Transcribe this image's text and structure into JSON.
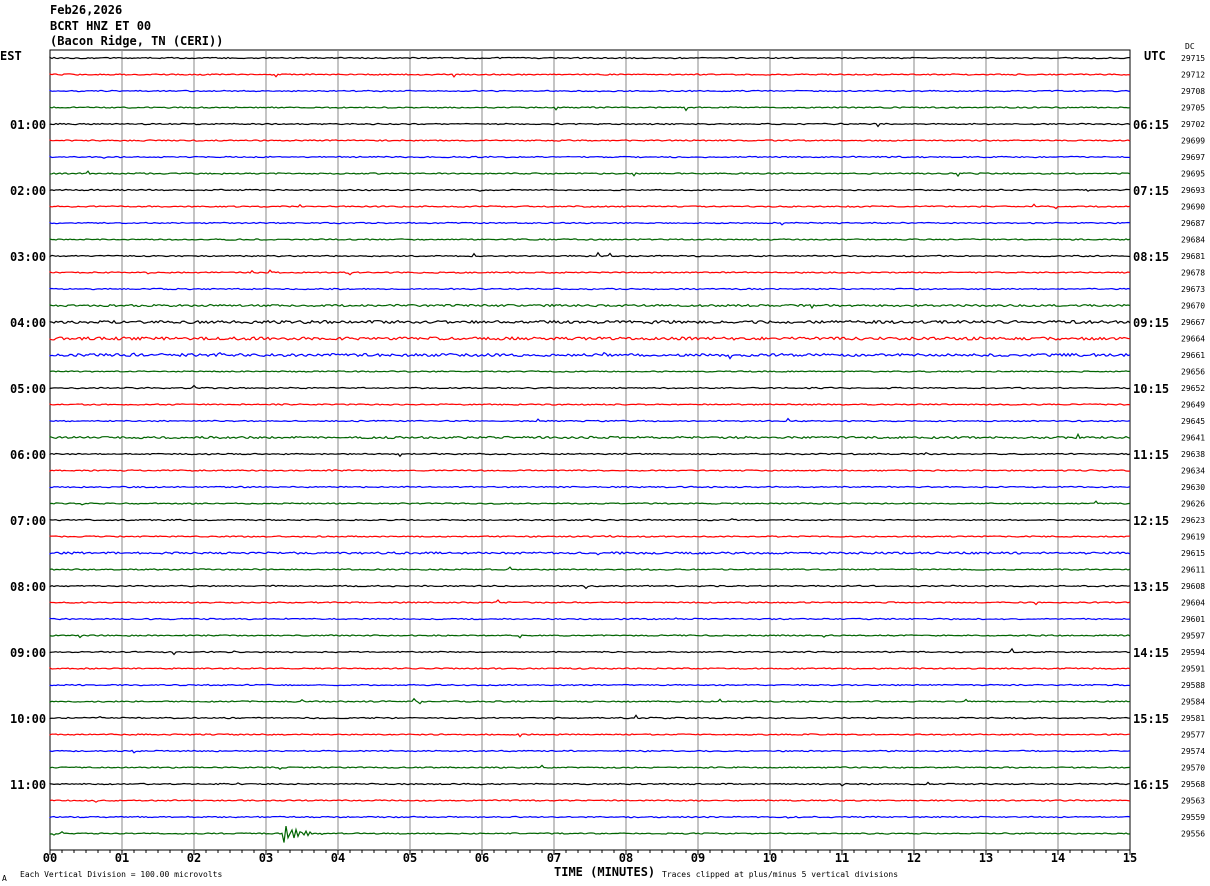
{
  "header": {
    "date": "Feb26,2026",
    "station": "BCRT HNZ ET 00",
    "location": "(Bacon Ridge, TN (CERI))",
    "left_tz": "EST",
    "right_tz": "UTC",
    "dc_label": "DC"
  },
  "footer": {
    "scale_note": "Each Vertical Division =  100.00 microvolts",
    "xlabel": "TIME (MINUTES)",
    "clip_note": "Traces clipped at plus/minus 5 vertical divisions",
    "corner_mark": "A"
  },
  "chart_data": {
    "type": "line",
    "title": "BCRT HNZ ET 00",
    "xlabel": "TIME (MINUTES)",
    "xlim": [
      0,
      15
    ],
    "x_ticks": [
      "00",
      "01",
      "02",
      "03",
      "04",
      "05",
      "06",
      "07",
      "08",
      "09",
      "10",
      "11",
      "12",
      "13",
      "14",
      "15"
    ],
    "trace_colors": [
      "#000000",
      "#ff0000",
      "#0000ff",
      "#006400"
    ],
    "rows_per_hour": 4,
    "left_hour_labels": [
      "01:00",
      "02:00",
      "03:00",
      "04:00",
      "05:00",
      "06:00",
      "07:00",
      "08:00",
      "09:00",
      "10:00",
      "11:00"
    ],
    "right_hour_labels": [
      "06:15",
      "07:15",
      "08:15",
      "09:15",
      "10:15",
      "11:15",
      "12:15",
      "13:15",
      "14:15",
      "15:15",
      "16:15"
    ],
    "dc_offsets": [
      29715,
      29712,
      29708,
      29705,
      29702,
      29699,
      29697,
      29695,
      29693,
      29690,
      29687,
      29684,
      29681,
      29678,
      29673,
      29670,
      29667,
      29664,
      29661,
      29656,
      29652,
      29649,
      29645,
      29641,
      29638,
      29634,
      29630,
      29626,
      29623,
      29619,
      29615,
      29611,
      29608,
      29604,
      29601,
      29597,
      29594,
      29591,
      29588,
      29584,
      29581,
      29577,
      29574,
      29570,
      29568,
      29563,
      29559,
      29556
    ],
    "events": [
      {
        "row": 47,
        "minute": 3.3,
        "label": ""
      }
    ],
    "grid": true
  }
}
